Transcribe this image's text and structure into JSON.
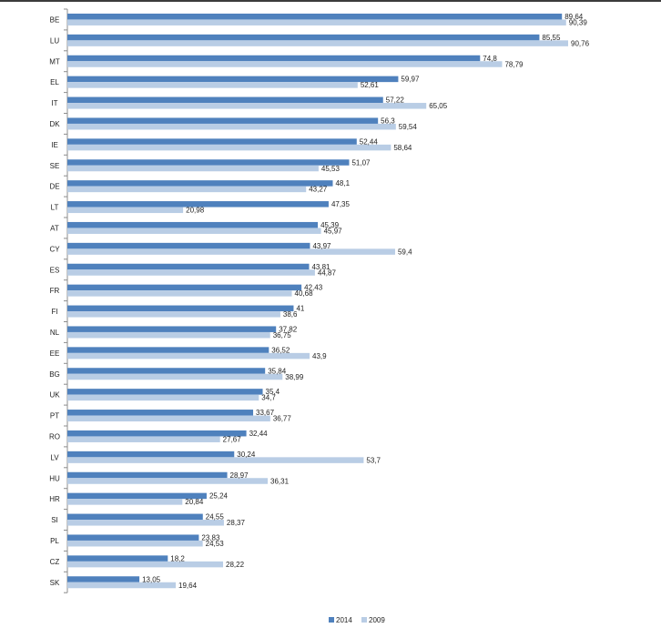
{
  "chart_data": {
    "type": "bar",
    "orientation": "horizontal",
    "categories": [
      "BE",
      "LU",
      "MT",
      "EL",
      "IT",
      "DK",
      "IE",
      "SE",
      "DE",
      "LT",
      "AT",
      "CY",
      "ES",
      "FR",
      "FI",
      "NL",
      "EE",
      "BG",
      "UK",
      "PT",
      "RO",
      "LV",
      "HU",
      "HR",
      "SI",
      "PL",
      "CZ",
      "SK"
    ],
    "series": [
      {
        "name": "2014",
        "color": "#4f81bd",
        "values": [
          89.64,
          85.55,
          74.8,
          59.97,
          57.22,
          56.3,
          52.44,
          51.07,
          48.1,
          47.35,
          45.39,
          43.97,
          43.81,
          42.43,
          41,
          37.82,
          36.52,
          35.84,
          35.4,
          33.67,
          32.44,
          30.24,
          28.97,
          25.24,
          24.55,
          23.83,
          18.2,
          13.05
        ],
        "labels": [
          "89,64",
          "85,55",
          "74,8",
          "59,97",
          "57,22",
          "56,3",
          "52,44",
          "51,07",
          "48,1",
          "47,35",
          "45,39",
          "43,97",
          "43,81",
          "42,43",
          "41",
          "37,82",
          "36,52",
          "35,84",
          "35,4",
          "33,67",
          "32,44",
          "30,24",
          "28,97",
          "25,24",
          "24,55",
          "23,83",
          "18,2",
          "13,05"
        ]
      },
      {
        "name": "2009",
        "color": "#b9cde5",
        "values": [
          90.39,
          90.76,
          78.79,
          52.61,
          65.05,
          59.54,
          58.64,
          45.53,
          43.27,
          20.98,
          45.97,
          59.4,
          44.87,
          40.68,
          38.6,
          36.75,
          43.9,
          38.99,
          34.7,
          36.77,
          27.67,
          53.7,
          36.31,
          20.84,
          28.37,
          24.53,
          28.22,
          19.64
        ],
        "labels": [
          "90,39",
          "90,76",
          "78,79",
          "52,61",
          "65,05",
          "59,54",
          "58,64",
          "45,53",
          "43,27",
          "20,98",
          "45,97",
          "59,4",
          "44,87",
          "40,68",
          "38,6",
          "36,75",
          "43,9",
          "38,99",
          "34,7",
          "36,77",
          "27,67",
          "53,7",
          "36,31",
          "20,84",
          "28,37",
          "24,53",
          "28,22",
          "19,64"
        ]
      }
    ],
    "xlim": [
      0,
      100
    ],
    "grid": false,
    "legend_position": "bottom"
  }
}
